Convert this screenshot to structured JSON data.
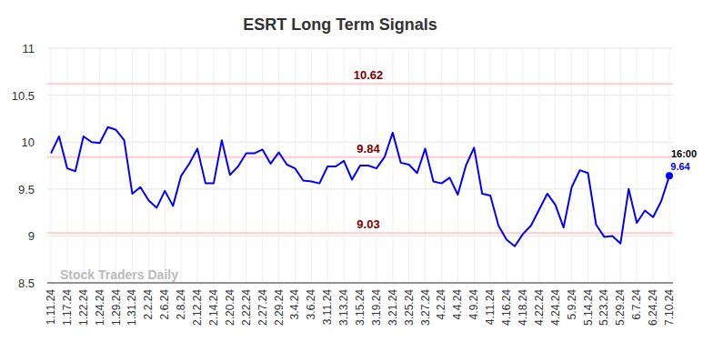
{
  "chart_data": {
    "type": "line",
    "title": "ESRT Long Term Signals",
    "categories": [
      "1.11.24",
      null,
      "1.17.24",
      null,
      "1.22.24",
      null,
      "1.24.24",
      null,
      "1.29.24",
      null,
      "1.31.24",
      null,
      "2.2.24",
      null,
      "2.6.24",
      null,
      "2.8.24",
      null,
      "2.12.24",
      null,
      "2.14.24",
      null,
      "2.20.24",
      null,
      "2.22.24",
      null,
      "2.27.24",
      null,
      "2.29.24",
      null,
      "3.4.24",
      null,
      "3.6.24",
      null,
      "3.11.24",
      null,
      "3.13.24",
      null,
      "3.15.24",
      null,
      "3.19.24",
      null,
      "3.21.24",
      null,
      "3.25.24",
      null,
      "3.27.24",
      null,
      "4.2.24",
      null,
      "4.4.24",
      null,
      "4.9.24",
      null,
      "4.11.24",
      null,
      "4.16.24",
      null,
      "4.18.24",
      null,
      "4.22.24",
      null,
      "4.24.24",
      null,
      "5.9.24",
      null,
      "5.14.24",
      null,
      "5.23.24",
      null,
      "5.29.24",
      null,
      "6.7.24",
      null,
      "6.24.24",
      null,
      "7.10.24"
    ],
    "values": [
      9.88,
      10.06,
      9.72,
      9.69,
      10.06,
      10.0,
      9.99,
      10.16,
      10.13,
      10.02,
      9.45,
      9.52,
      9.38,
      9.3,
      9.48,
      9.32,
      9.64,
      9.77,
      9.93,
      9.56,
      9.56,
      10.02,
      9.65,
      9.74,
      9.88,
      9.88,
      9.92,
      9.77,
      9.89,
      9.76,
      9.72,
      9.59,
      9.58,
      9.56,
      9.74,
      9.74,
      9.8,
      9.6,
      9.75,
      9.75,
      9.72,
      9.84,
      10.1,
      9.78,
      9.76,
      9.67,
      9.93,
      9.58,
      9.56,
      9.62,
      9.44,
      9.75,
      9.94,
      9.45,
      9.43,
      9.11,
      8.96,
      8.89,
      9.02,
      9.11,
      9.28,
      9.45,
      9.33,
      9.09,
      9.52,
      9.7,
      9.67,
      9.12,
      8.99,
      9.0,
      8.92,
      9.5,
      9.14,
      9.27,
      9.2,
      9.37,
      9.64
    ],
    "color": "#0000ff",
    "ylim": [
      8.5,
      11
    ],
    "yticks": [
      8.5,
      9,
      9.5,
      10,
      10.5,
      11
    ],
    "grid": true,
    "levels": [
      10.62,
      9.84,
      9.03
    ],
    "annotations": [
      {
        "text": "16:00"
      }
    ],
    "watermark": "Stock Traders Daily"
  }
}
